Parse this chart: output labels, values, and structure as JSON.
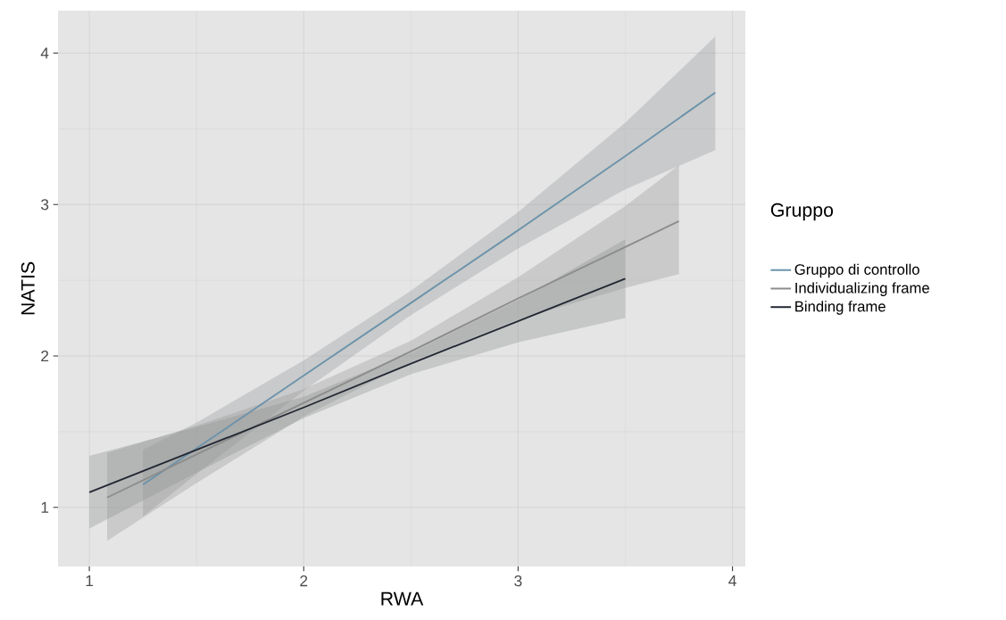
{
  "chart_data": {
    "type": "line",
    "xlabel": "RWA",
    "ylabel": "NATIS",
    "legend_title": "Gruppo",
    "xlim": [
      0.854,
      4.06
    ],
    "ylim": [
      0.61,
      4.28
    ],
    "xticks": [
      1,
      2,
      3,
      4
    ],
    "yticks": [
      1,
      2,
      3,
      4
    ],
    "grid": true,
    "legend": "right",
    "series": [
      {
        "name": "Gruppo di controllo",
        "color": "#6b93aa",
        "x": [
          1.25,
          1.5,
          2,
          2.5,
          3,
          3.5,
          3.92
        ],
        "values": [
          1.15,
          1.39,
          1.87,
          2.35,
          2.83,
          3.32,
          3.74
        ],
        "lower": [
          0.94,
          1.22,
          1.77,
          2.27,
          2.71,
          3.1,
          3.36
        ],
        "upper": [
          1.38,
          1.56,
          1.97,
          2.43,
          2.95,
          3.54,
          4.11
        ]
      },
      {
        "name": "Individualizing frame",
        "color": "#8c8c8c",
        "x": [
          1.083,
          1.5,
          2,
          2.5,
          3,
          3.5,
          3.75
        ],
        "values": [
          1.065,
          1.35,
          1.69,
          2.03,
          2.38,
          2.72,
          2.89
        ],
        "lower": [
          0.78,
          1.16,
          1.6,
          1.96,
          2.24,
          2.45,
          2.54
        ],
        "upper": [
          1.36,
          1.54,
          1.78,
          2.1,
          2.52,
          2.99,
          3.26
        ]
      },
      {
        "name": "Binding frame",
        "color": "#222832",
        "x": [
          1,
          1.5,
          2,
          2.5,
          3,
          3.5
        ],
        "values": [
          1.1,
          1.38,
          1.66,
          1.95,
          2.23,
          2.51
        ],
        "lower": [
          0.86,
          1.23,
          1.59,
          1.88,
          2.09,
          2.25
        ],
        "upper": [
          1.34,
          1.53,
          1.73,
          2.02,
          2.37,
          2.77
        ]
      }
    ]
  }
}
